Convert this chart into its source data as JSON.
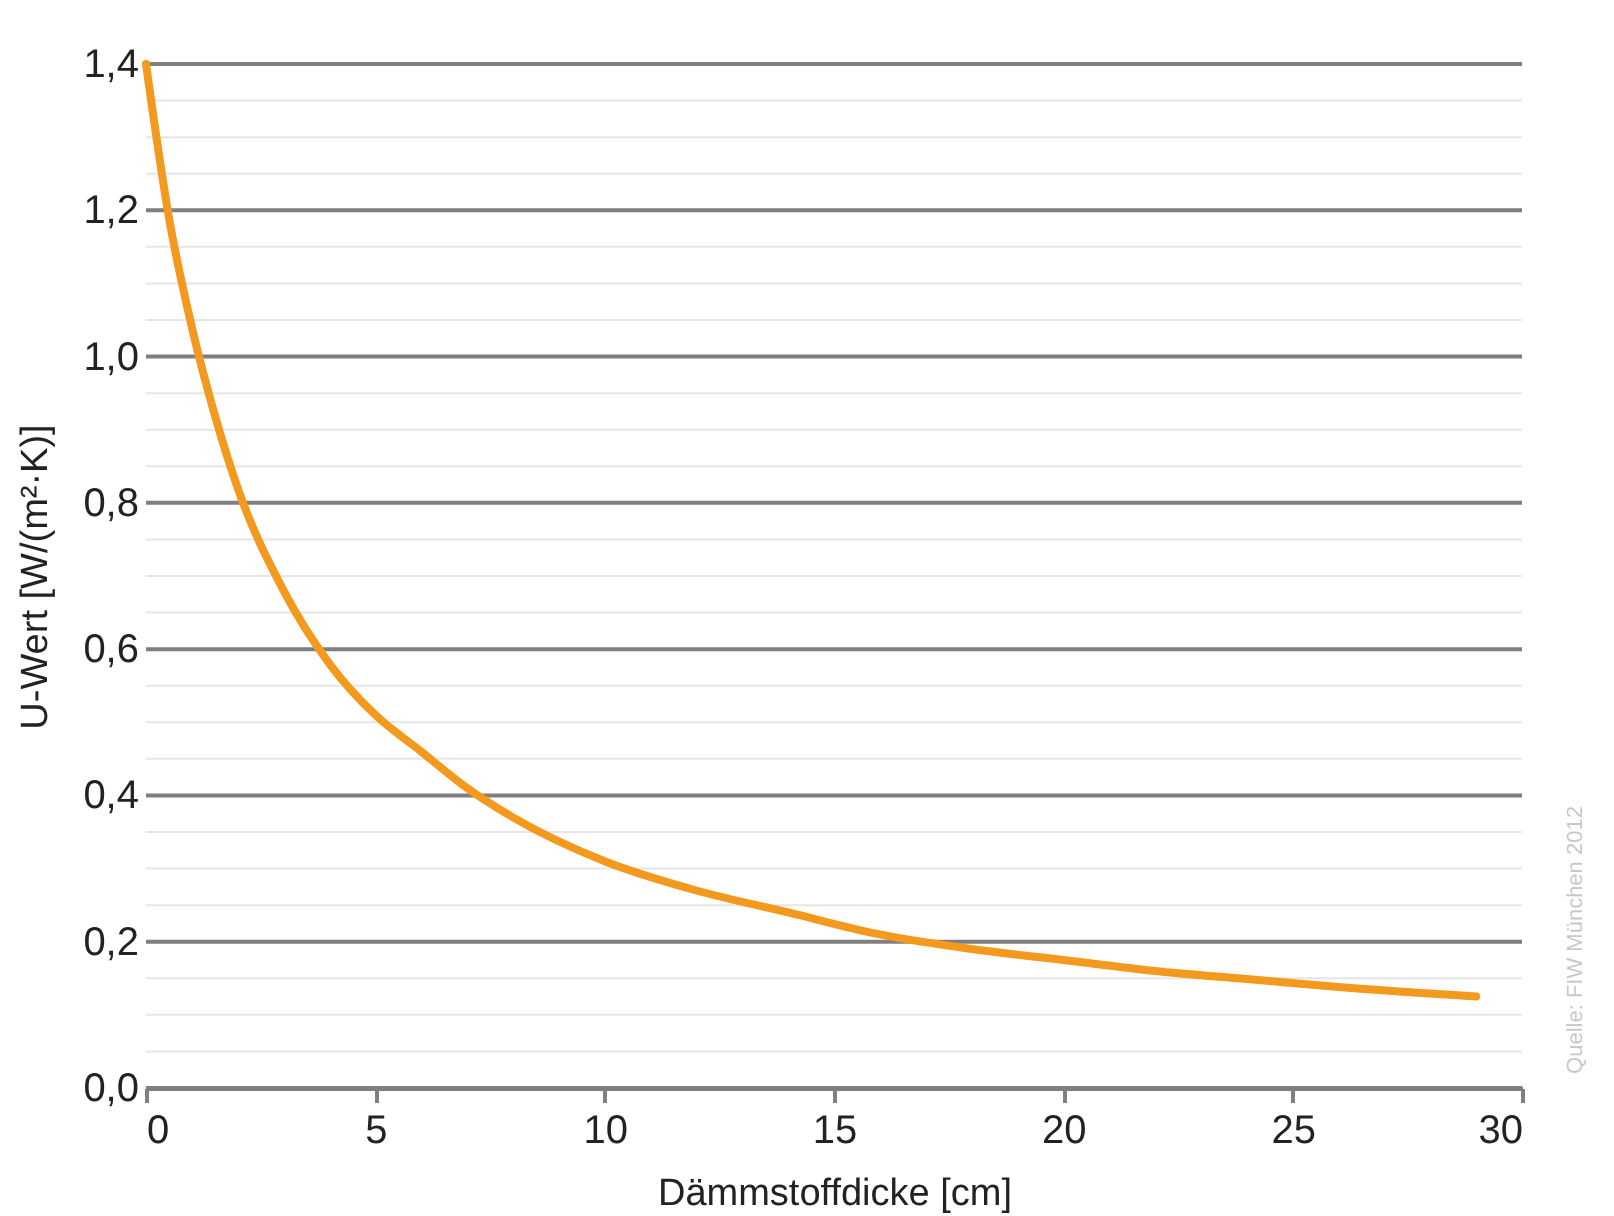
{
  "chart_data": {
    "type": "line",
    "xlabel": "Dämmstoffdicke [cm]",
    "ylabel": "U-Wert [W/(m²·K)]",
    "x": [
      0,
      0.5,
      1,
      1.5,
      2,
      3,
      4,
      5,
      6,
      7,
      8,
      10,
      12,
      14,
      16,
      18,
      20,
      22,
      24,
      26,
      29
    ],
    "series": [
      {
        "color": "#f39a1e",
        "values": [
          1.4,
          1.19,
          1.04,
          0.92,
          0.82,
          0.68,
          0.58,
          0.51,
          0.46,
          0.41,
          0.37,
          0.31,
          0.27,
          0.24,
          0.21,
          0.19,
          0.175,
          0.16,
          0.149,
          0.138,
          0.125
        ]
      }
    ],
    "xlim": [
      0,
      30
    ],
    "xticks": [
      0,
      5,
      10,
      15,
      20,
      25,
      30
    ],
    "ylim": [
      0,
      1.4
    ],
    "yticks": [
      {
        "value": 0,
        "label": "0,0"
      },
      {
        "value": 0.05,
        "label": null
      },
      {
        "value": 0.1,
        "label": null
      },
      {
        "value": 0.15,
        "label": null
      },
      {
        "value": 0.2,
        "label": "0,2"
      },
      {
        "value": 0.25,
        "label": null
      },
      {
        "value": 0.3,
        "label": null
      },
      {
        "value": 0.35,
        "label": null
      },
      {
        "value": 0.4,
        "label": "0,4"
      },
      {
        "value": 0.45,
        "label": null
      },
      {
        "value": 0.5,
        "label": null
      },
      {
        "value": 0.55,
        "label": null
      },
      {
        "value": 0.6,
        "label": "0,6"
      },
      {
        "value": 0.65,
        "label": null
      },
      {
        "value": 0.7,
        "label": null
      },
      {
        "value": 0.75,
        "label": null
      },
      {
        "value": 0.8,
        "label": "0,8"
      },
      {
        "value": 0.85,
        "label": null
      },
      {
        "value": 0.9,
        "label": null
      },
      {
        "value": 0.95,
        "label": null
      },
      {
        "value": 1.0,
        "label": "1,0"
      },
      {
        "value": 1.05,
        "label": null
      },
      {
        "value": 1.1,
        "label": null
      },
      {
        "value": 1.15,
        "label": null
      },
      {
        "value": 1.2,
        "label": "1,2"
      },
      {
        "value": 1.25,
        "label": null
      },
      {
        "value": 1.3,
        "label": null
      },
      {
        "value": 1.35,
        "label": null
      },
      {
        "value": 1.4,
        "label": "1,4"
      }
    ],
    "grid": "y",
    "marker": "none",
    "line_style": "solid",
    "annotations": [
      "Quelle: FIW München 2012"
    ]
  }
}
